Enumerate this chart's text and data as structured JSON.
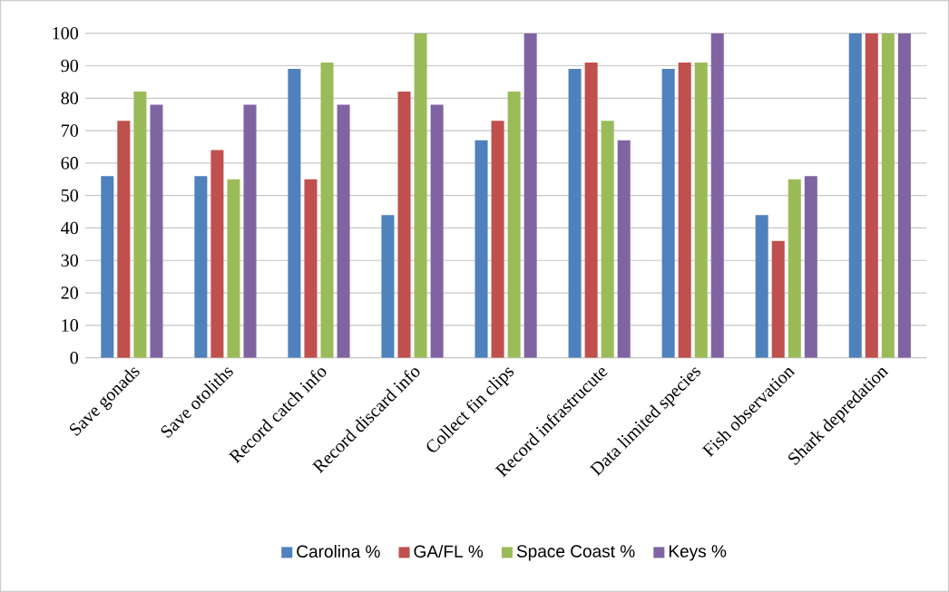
{
  "chart_data": {
    "type": "bar",
    "categories": [
      "Save gonads",
      "Save otoliths",
      "Record catch info",
      "Record discard info",
      "Collect fin clips",
      "Record infrastrucute",
      "Data limited species",
      "Fish observation",
      "Shark depredation"
    ],
    "series": [
      {
        "name": "Carolina %",
        "color": "#4f81bd",
        "values": [
          56,
          56,
          89,
          44,
          67,
          89,
          89,
          44,
          100
        ]
      },
      {
        "name": "GA/FL %",
        "color": "#c0504d",
        "values": [
          73,
          64,
          55,
          82,
          73,
          91,
          91,
          36,
          100
        ]
      },
      {
        "name": "Space Coast %",
        "color": "#9bbb59",
        "values": [
          82,
          55,
          91,
          100,
          82,
          73,
          91,
          55,
          100
        ]
      },
      {
        "name": "Keys %",
        "color": "#8064a2",
        "values": [
          78,
          78,
          78,
          78,
          100,
          67,
          100,
          56,
          100
        ]
      }
    ],
    "ylim": [
      0,
      100
    ],
    "yticks": [
      0,
      10,
      20,
      30,
      40,
      50,
      60,
      70,
      80,
      90,
      100
    ],
    "grid": "y",
    "legend": "bottom"
  }
}
